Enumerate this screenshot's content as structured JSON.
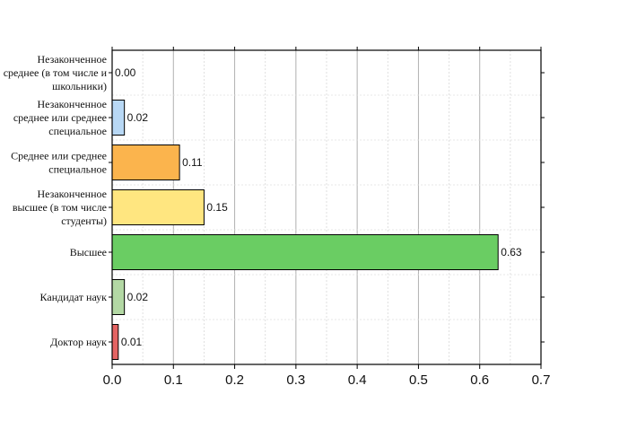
{
  "chart_data": {
    "type": "bar",
    "orientation": "horizontal",
    "title": "",
    "xlabel": "",
    "ylabel": "",
    "xlim": [
      0,
      0.7
    ],
    "xticks": [
      "0.0",
      "0.1",
      "0.2",
      "0.3",
      "0.4",
      "0.5",
      "0.6",
      "0.7"
    ],
    "grid": true,
    "categories": [
      [
        "Незаконченное",
        "среднее (в том числе и",
        "школьники)"
      ],
      [
        "Незаконченное",
        "среднее или среднее",
        "специальное"
      ],
      [
        "Среднее или среднее",
        "специальное"
      ],
      [
        "Незаконченное",
        "высшее (в том числе",
        "студенты)"
      ],
      [
        "Высшее"
      ],
      [
        "Кандидат наук"
      ],
      [
        "Доктор наук"
      ]
    ],
    "values": [
      0.0,
      0.02,
      0.11,
      0.15,
      0.63,
      0.02,
      0.01
    ],
    "value_labels": [
      "0.00",
      "0.02",
      "0.11",
      "0.15",
      "0.63",
      "0.02",
      "0.01"
    ],
    "colors": [
      "#f6a1a1",
      "#b8d8f5",
      "#fbb44d",
      "#ffe680",
      "#6acd63",
      "#b3d8a4",
      "#e46463"
    ]
  }
}
